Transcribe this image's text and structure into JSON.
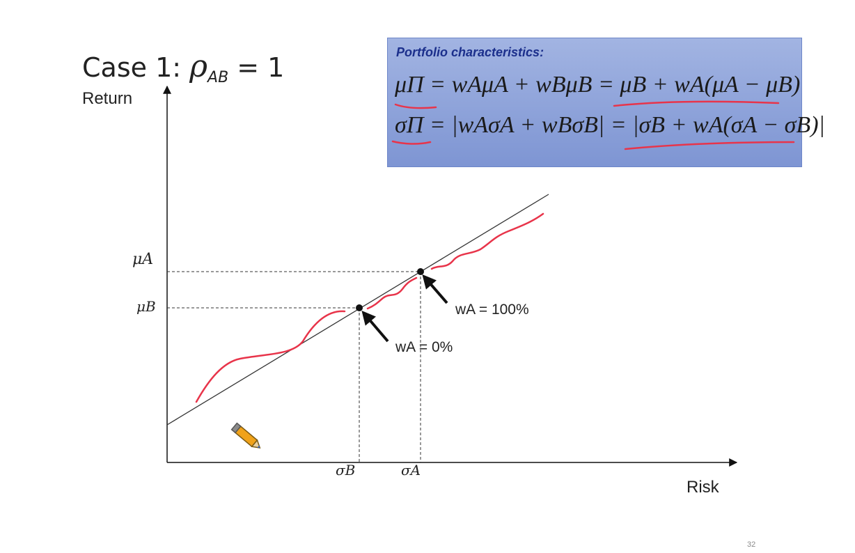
{
  "slide": {
    "title_prefix": "Case 1: ",
    "title_symbol": "ρ",
    "title_subscript": "AB",
    "title_suffix": " = 1",
    "page_number": "32"
  },
  "box": {
    "title": "Portfolio characteristics:",
    "equation_1": "μΠ = wAμA + wBμB = μB + wA(μA − μB)",
    "equation_2": "σΠ = |wAσA + wBσB| = |σB + wA(σA − σB)|"
  },
  "axes": {
    "y_label": "Return",
    "x_label": "Risk",
    "y_tick_a": "μA",
    "y_tick_b": "μB",
    "x_tick_b": "σB",
    "x_tick_a": "σA"
  },
  "annotations": {
    "label_wa_100": "wA = 100%",
    "label_wa_0": "wA = 0%"
  },
  "colors": {
    "box_bg": "#8fa3dc",
    "ink": "#e8344a",
    "line": "#333333"
  },
  "icons": [
    "pencil-icon"
  ]
}
